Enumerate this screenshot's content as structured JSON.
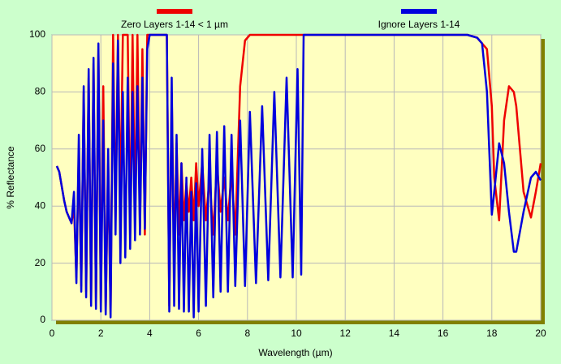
{
  "chart_data": {
    "type": "line",
    "xlabel": "Wavelength (µm)",
    "ylabel": "% Reflectance",
    "x": [
      0.2,
      0.3,
      0.4,
      0.5,
      0.6,
      0.7,
      0.8,
      0.9,
      1.0,
      1.1,
      1.2,
      1.3,
      1.4,
      1.5,
      1.6,
      1.7,
      1.8,
      1.9,
      2.0,
      2.1,
      2.2,
      2.3,
      2.4,
      2.5,
      2.6,
      2.7,
      2.8,
      2.9,
      3.0,
      3.1,
      3.2,
      3.3,
      3.4,
      3.5,
      3.6,
      3.7,
      3.8,
      3.9,
      4.0,
      4.3,
      4.7,
      4.8,
      4.9,
      5.0,
      5.1,
      5.2,
      5.3,
      5.4,
      5.5,
      5.6,
      5.7,
      5.8,
      5.9,
      6.0,
      6.15,
      6.3,
      6.45,
      6.6,
      6.75,
      6.9,
      7.05,
      7.2,
      7.35,
      7.5,
      7.7,
      7.9,
      8.1,
      8.35,
      8.6,
      8.85,
      9.1,
      9.35,
      9.6,
      9.85,
      10.05,
      10.2,
      10.3,
      12,
      14,
      16,
      17,
      17.4,
      17.6,
      17.8,
      18.0,
      18.1,
      18.3,
      18.5,
      18.7,
      18.9,
      19.0,
      19.3,
      19.6,
      19.8,
      20.0
    ],
    "series": [
      {
        "name": "Zero Layers 1-14 < 1 µm",
        "color": "#ee0000",
        "values": [
          54,
          52,
          47,
          42,
          38,
          36,
          34,
          40,
          15,
          60,
          12,
          80,
          10,
          85,
          6,
          90,
          5,
          95,
          4,
          82,
          3,
          55,
          2,
          100,
          35,
          100,
          40,
          100,
          100,
          100,
          30,
          100,
          35,
          100,
          32,
          95,
          30,
          100,
          100,
          100,
          100,
          5,
          80,
          20,
          62,
          30,
          55,
          35,
          48,
          38,
          50,
          35,
          55,
          40,
          55,
          35,
          50,
          30,
          55,
          38,
          50,
          35,
          52,
          30,
          82,
          98,
          100,
          100,
          100,
          100,
          100,
          100,
          100,
          100,
          100,
          100,
          100,
          100,
          100,
          100,
          100,
          99,
          97,
          95,
          75,
          50,
          35,
          70,
          82,
          80,
          75,
          45,
          36,
          45,
          55
        ]
      },
      {
        "name": "Ignore Layers 1-14",
        "color": "#0000dd",
        "values": [
          54,
          52,
          47,
          42,
          38,
          36,
          34,
          45,
          13,
          65,
          10,
          82,
          8,
          88,
          5,
          92,
          4,
          97,
          3,
          70,
          2,
          60,
          1,
          90,
          30,
          98,
          20,
          80,
          22,
          85,
          25,
          80,
          28,
          82,
          30,
          85,
          32,
          95,
          100,
          100,
          100,
          3,
          85,
          5,
          65,
          4,
          55,
          3,
          50,
          3,
          45,
          1,
          48,
          3,
          60,
          5,
          65,
          8,
          66,
          10,
          68,
          10,
          65,
          12,
          70,
          12,
          73,
          13,
          75,
          14,
          80,
          15,
          85,
          15,
          88,
          16,
          100,
          100,
          100,
          100,
          100,
          99,
          97,
          80,
          37,
          45,
          62,
          55,
          38,
          24,
          24,
          38,
          50,
          52,
          49
        ]
      }
    ],
    "xlim": [
      0,
      20
    ],
    "xticks": [
      0,
      2,
      4,
      6,
      8,
      10,
      12,
      14,
      16,
      18,
      20
    ],
    "ylim": [
      0,
      100
    ],
    "yticks": [
      0,
      20,
      40,
      60,
      80,
      100
    ],
    "grid": true
  }
}
